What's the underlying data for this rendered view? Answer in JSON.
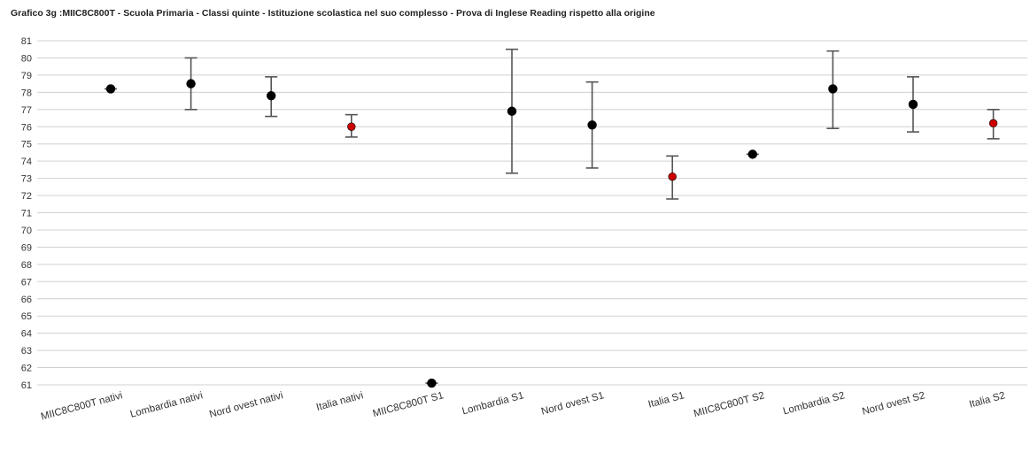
{
  "chart_data": {
    "type": "scatter",
    "title": "Grafico 3g :MIIC8C800T - Scuola Primaria - Classi quinte - Istituzione scolastica nel suo complesso - Prova di Inglese Reading rispetto alla  origine",
    "xlabel": "",
    "ylabel": "",
    "ylim": [
      61,
      81
    ],
    "yticks": [
      61,
      62,
      63,
      64,
      65,
      66,
      67,
      68,
      69,
      70,
      71,
      72,
      73,
      74,
      75,
      76,
      77,
      78,
      79,
      80,
      81
    ],
    "grid": true,
    "categories": [
      "MIIC8C800T nativi",
      "Lombardia nativi",
      "Nord ovest nativi",
      "Italia nativi",
      "MIIC8C800T S1",
      "Lombardia S1",
      "Nord ovest S1",
      "Italia S1",
      "MIIC8C800T S2",
      "Lombardia S2",
      "Nord ovest S2",
      "Italia S2"
    ],
    "values": [
      78.2,
      78.5,
      77.8,
      76.0,
      61.1,
      76.9,
      76.1,
      73.1,
      74.4,
      78.2,
      77.3,
      76.2
    ],
    "lower": [
      78.2,
      77.0,
      76.6,
      75.4,
      61.1,
      73.3,
      73.6,
      71.8,
      74.4,
      75.9,
      75.7,
      75.3
    ],
    "upper": [
      78.2,
      80.0,
      78.9,
      76.7,
      61.1,
      80.5,
      78.6,
      74.3,
      74.4,
      80.4,
      78.9,
      77.0
    ],
    "point_colors": [
      "#000000",
      "#000000",
      "#000000",
      "#cc0000",
      "#000000",
      "#000000",
      "#000000",
      "#cc0000",
      "#000000",
      "#000000",
      "#000000",
      "#cc0000"
    ],
    "errorbar_color": "#555555",
    "grid_color": "#d0d0d0"
  }
}
